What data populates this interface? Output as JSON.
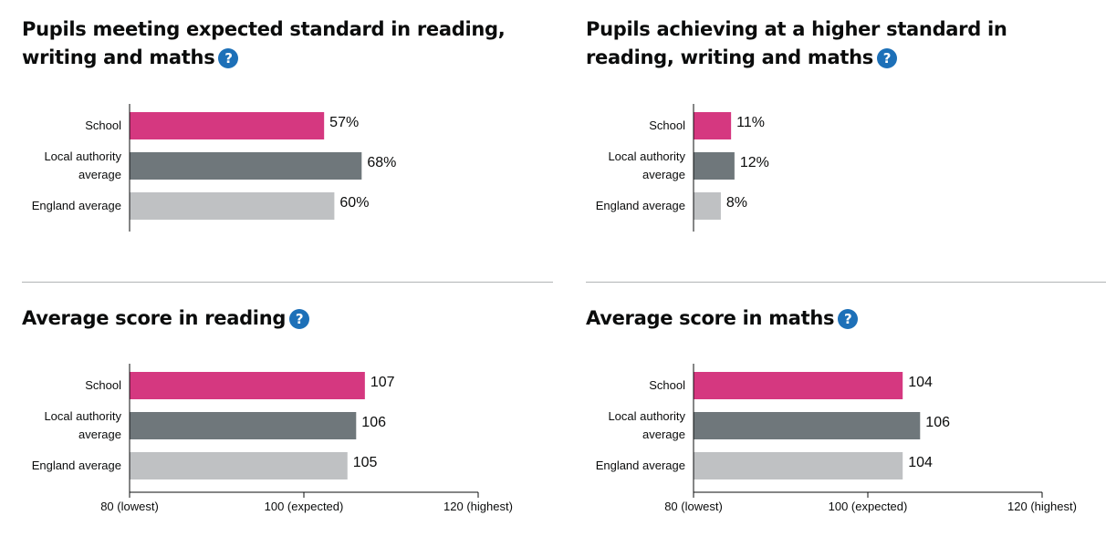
{
  "colors": {
    "school": "#d53880",
    "local_authority": "#6f777b",
    "england": "#bfc1c3",
    "help": "#1d70b8"
  },
  "help_icon": {
    "glyph": "?",
    "icon": "question-circle-icon"
  },
  "chart_data": [
    {
      "type": "bar",
      "title": "Pupils meeting expected standard in reading, writing and maths",
      "categories": [
        [
          "School"
        ],
        [
          "Local authority",
          "average"
        ],
        [
          "England average"
        ]
      ],
      "values": [
        57,
        68,
        60
      ],
      "value_labels": [
        "57%",
        "68%",
        "60%"
      ],
      "xlim": [
        0,
        100
      ],
      "ticks": []
    },
    {
      "type": "bar",
      "title": "Pupils achieving at a higher standard in reading, writing and maths",
      "categories": [
        [
          "School"
        ],
        [
          "Local authority",
          "average"
        ],
        [
          "England average"
        ]
      ],
      "values": [
        11,
        12,
        8
      ],
      "value_labels": [
        "11%",
        "12%",
        "8%"
      ],
      "xlim": [
        0,
        100
      ],
      "ticks": []
    },
    {
      "type": "bar",
      "title": "Average score in reading",
      "categories": [
        [
          "School"
        ],
        [
          "Local authority",
          "average"
        ],
        [
          "England average"
        ]
      ],
      "values": [
        107,
        106,
        105
      ],
      "value_labels": [
        "107",
        "106",
        "105"
      ],
      "xlim": [
        80,
        120
      ],
      "ticks": [
        {
          "value": 80,
          "label": "80 (lowest)"
        },
        {
          "value": 100,
          "label": "100 (expected)"
        },
        {
          "value": 120,
          "label": "120 (highest)"
        }
      ]
    },
    {
      "type": "bar",
      "title": "Average score in maths",
      "categories": [
        [
          "School"
        ],
        [
          "Local authority",
          "average"
        ],
        [
          "England average"
        ]
      ],
      "values": [
        104,
        106,
        104
      ],
      "value_labels": [
        "104",
        "106",
        "104"
      ],
      "xlim": [
        80,
        120
      ],
      "ticks": [
        {
          "value": 80,
          "label": "80 (lowest)"
        },
        {
          "value": 100,
          "label": "100 (expected)"
        },
        {
          "value": 120,
          "label": "120 (highest)"
        }
      ]
    }
  ]
}
